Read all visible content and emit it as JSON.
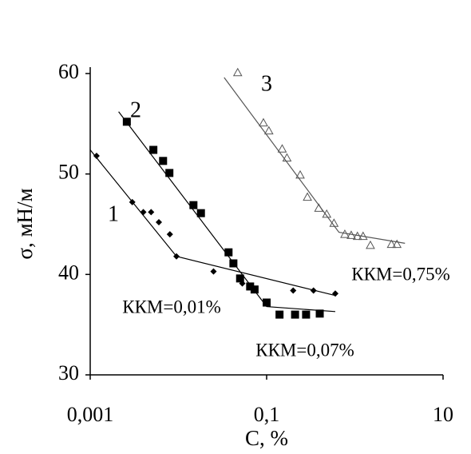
{
  "chart_data": {
    "type": "scatter",
    "xlabel": "C, %",
    "ylabel": "σ, мН/м",
    "xscale": "log",
    "xlim": [
      0.001,
      10
    ],
    "ylim": [
      30,
      60
    ],
    "xticks": [
      {
        "value": 0.001,
        "label": "0,001"
      },
      {
        "value": 0.1,
        "label": "0,1"
      },
      10
    ],
    "yticks": [
      30,
      40,
      50,
      60
    ],
    "series": [
      {
        "name": "1",
        "marker": "diamond",
        "color": "#000000",
        "annotation": "ККМ=0,01%",
        "x": [
          0.00118,
          0.003,
          0.004,
          0.0049,
          0.006,
          0.008,
          0.0095,
          0.025,
          0.053,
          0.2,
          0.34,
          0.6
        ],
        "y": [
          51.8,
          47.2,
          46.2,
          46.2,
          45.2,
          44.0,
          41.8,
          40.3,
          39.1,
          38.4,
          38.4,
          38.1
        ],
        "fit_x": [
          0.001,
          0.0095,
          0.6
        ],
        "fit_y": [
          52.4,
          41.8,
          37.9
        ]
      },
      {
        "name": "2",
        "marker": "square",
        "color": "#000000",
        "annotation": "ККМ=0,07%",
        "x": [
          0.0026,
          0.0052,
          0.0067,
          0.0079,
          0.0148,
          0.018,
          0.037,
          0.042,
          0.05,
          0.065,
          0.073,
          0.1,
          0.14,
          0.21,
          0.28,
          0.4
        ],
        "y": [
          55.2,
          52.4,
          51.3,
          50.1,
          46.9,
          46.1,
          42.2,
          41.1,
          39.6,
          38.8,
          38.5,
          37.2,
          36.0,
          36.0,
          36.0,
          36.1
        ],
        "fit_x": [
          0.0021,
          0.1,
          0.6
        ],
        "fit_y": [
          56.2,
          36.8,
          36.3
        ]
      },
      {
        "name": "3",
        "marker": "triangle",
        "color": "#555555",
        "annotation": "ККМ=0,75%",
        "x": [
          0.047,
          0.092,
          0.106,
          0.15,
          0.17,
          0.24,
          0.29,
          0.39,
          0.48,
          0.58,
          0.77,
          0.91,
          1.07,
          1.24,
          1.5,
          2.6,
          3.0
        ],
        "y": [
          60.1,
          55.1,
          54.3,
          52.5,
          51.6,
          49.9,
          47.7,
          46.6,
          46.0,
          45.1,
          44.0,
          43.9,
          43.8,
          43.8,
          42.9,
          43.0,
          43.0
        ],
        "fit_x": [
          0.033,
          0.66,
          3.7
        ],
        "fit_y": [
          59.6,
          44.2,
          43.1
        ]
      }
    ]
  }
}
